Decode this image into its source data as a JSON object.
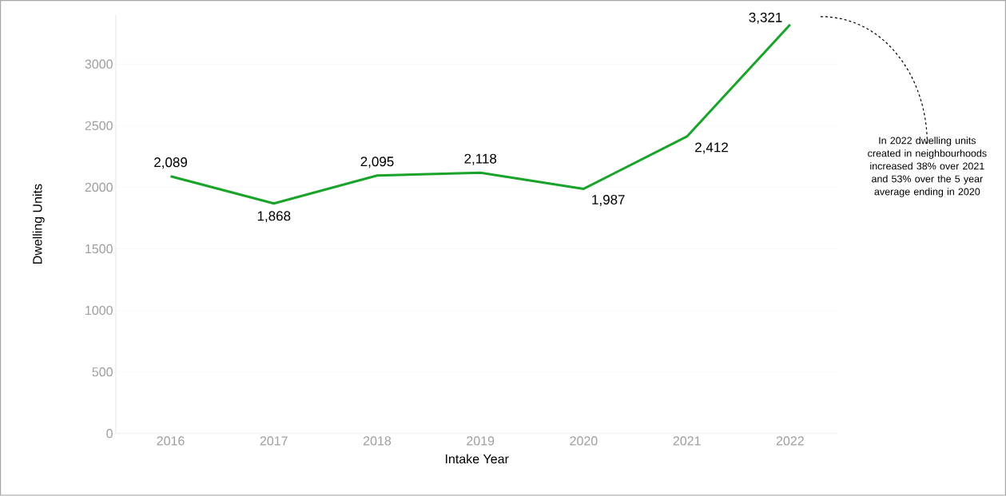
{
  "chart_data": {
    "type": "line",
    "xlabel": "Intake Year",
    "ylabel": "Dwelling Units",
    "categories": [
      "2016",
      "2017",
      "2018",
      "2019",
      "2020",
      "2021",
      "2022"
    ],
    "values": [
      2089,
      1868,
      2095,
      2118,
      1987,
      2412,
      3321
    ],
    "value_labels": [
      "2,089",
      "1,868",
      "2,095",
      "2,118",
      "1,987",
      "2,412",
      "3,321"
    ],
    "color": "#1aa32a",
    "ylim": [
      0,
      3400
    ],
    "yticks": [
      0,
      500,
      1000,
      1500,
      2000,
      2500,
      3000
    ],
    "grid": "y",
    "annotations": [
      "In 2022 dwelling units created in neighbourhoods increased 38% over 2021 and 53% over the 5 year average ending in 2020"
    ]
  }
}
